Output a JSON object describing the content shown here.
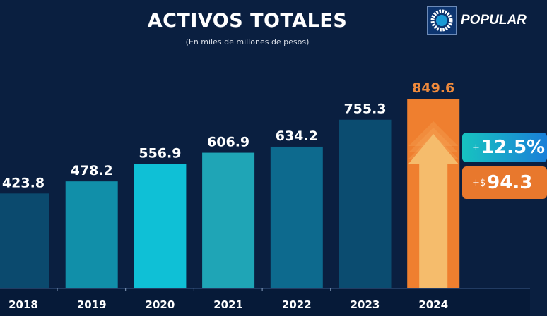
{
  "header": {
    "title": "ACTIVOS TOTALES",
    "subtitle": "(En miles de millones de pesos)",
    "logo_text": "POPULAR"
  },
  "badges": {
    "pct_prefix": "+",
    "pct_value": "12.5%",
    "abs_prefix": "+$",
    "abs_value": "94.3"
  },
  "chart_data": {
    "type": "bar",
    "title": "ACTIVOS TOTALES",
    "subtitle": "(En miles de millones de pesos)",
    "categories": [
      "2018",
      "2019",
      "2020",
      "2021",
      "2022",
      "2023",
      "2024"
    ],
    "values": [
      423.8,
      478.2,
      556.9,
      606.9,
      634.2,
      755.3,
      849.6
    ],
    "labels": [
      "423.8",
      "478.2",
      "556.9",
      "606.9",
      "634.2",
      "755.3",
      "849.6"
    ],
    "colors": [
      "#0b4a6e",
      "#118fa9",
      "#0fc0d6",
      "#1fa5b6",
      "#0d6a8e",
      "#0b4c70",
      "#ef7f2f"
    ],
    "label_colors": [
      "#ffffff",
      "#ffffff",
      "#ffffff",
      "#ffffff",
      "#ffffff",
      "#ffffff",
      "#ef8a3c"
    ],
    "ylim": [
      0,
      1000
    ],
    "grid": false,
    "legend": "none"
  }
}
